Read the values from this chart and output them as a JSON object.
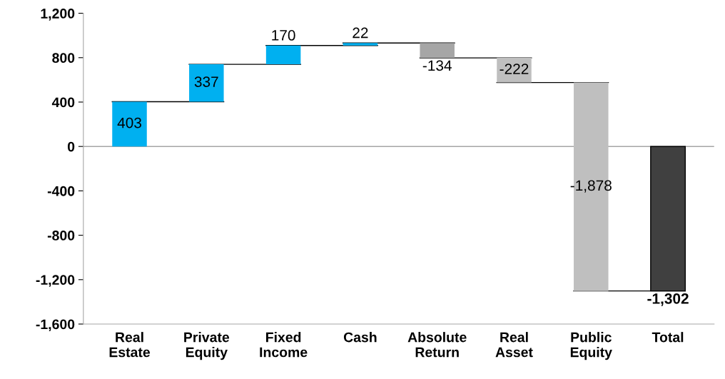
{
  "chart_data": {
    "type": "bar",
    "categories": [
      "Real\nEstate",
      "Private\nEquity",
      "Fixed\nIncome",
      "Cash",
      "Absolute\nReturn",
      "Real\nAsset",
      "Public\nEquity",
      "Total"
    ],
    "values": [
      403,
      337,
      170,
      22,
      -134,
      -222,
      -1878,
      -1302
    ],
    "base": [
      0,
      403,
      740,
      910,
      932,
      798,
      576,
      0
    ],
    "colors": [
      "#00b0f0",
      "#00b0f0",
      "#00b0f0",
      "#00b0f0",
      "#a6a6a6",
      "#bfbfbf",
      "#bfbfbf",
      "#404040"
    ],
    "value_labels": [
      "403",
      "337",
      "170",
      "22",
      "-134",
      "-222",
      "-1,878",
      "-1,302"
    ],
    "ylim": [
      -1600,
      1200
    ],
    "yticks": [
      {
        "value": -1600,
        "label": "-1,600"
      },
      {
        "value": -1200,
        "label": "-1,200"
      },
      {
        "value": -800,
        "label": "-800"
      },
      {
        "value": -400,
        "label": "-400"
      },
      0,
      400,
      800,
      {
        "value": 1200,
        "label": "1,200"
      }
    ],
    "ref_lines": [
      {
        "axis": "y",
        "value": 0,
        "color": "#a6a6a6"
      }
    ],
    "grid": false,
    "legend": false
  }
}
